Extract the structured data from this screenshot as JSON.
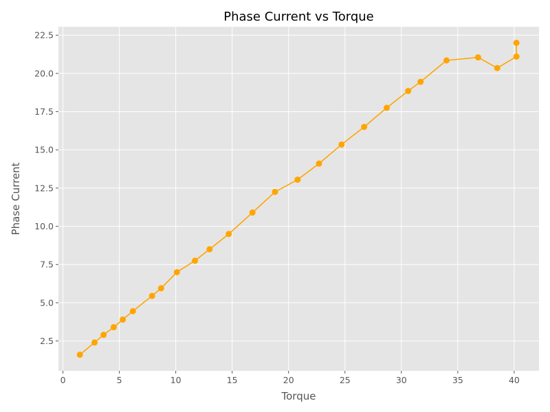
{
  "chart_data": {
    "type": "line",
    "title": "Phase Current vs Torque",
    "xlabel": "Torque",
    "ylabel": "Phase Current",
    "xlim": [
      -0.4,
      42.2
    ],
    "ylim": [
      0.55,
      23.05
    ],
    "xticks": [
      0,
      5,
      10,
      15,
      20,
      25,
      30,
      35,
      40
    ],
    "yticks": [
      2.5,
      5.0,
      7.5,
      10.0,
      12.5,
      15.0,
      17.5,
      20.0,
      22.5
    ],
    "xtick_labels": [
      "0",
      "5",
      "10",
      "15",
      "20",
      "25",
      "30",
      "35",
      "40"
    ],
    "ytick_labels": [
      "2.5",
      "5.0",
      "7.5",
      "10.0",
      "12.5",
      "15.0",
      "17.5",
      "20.0",
      "22.5"
    ],
    "grid": true,
    "legend": false,
    "series": [
      {
        "color": "#ffa500",
        "marker": "circle",
        "x": [
          1.5,
          2.8,
          3.6,
          4.5,
          5.3,
          6.2,
          7.9,
          8.7,
          10.1,
          11.7,
          13.0,
          14.7,
          16.8,
          18.8,
          20.8,
          22.7,
          24.7,
          26.7,
          28.7,
          30.6,
          31.7,
          34.0,
          36.8,
          38.5,
          40.2,
          40.2
        ],
        "y": [
          1.6,
          2.4,
          2.9,
          3.4,
          3.9,
          4.45,
          5.45,
          5.95,
          7.0,
          7.75,
          8.5,
          9.5,
          10.9,
          12.25,
          13.05,
          14.1,
          15.35,
          16.5,
          17.75,
          18.85,
          19.45,
          20.85,
          21.05,
          20.35,
          21.1,
          22.0
        ]
      }
    ]
  }
}
